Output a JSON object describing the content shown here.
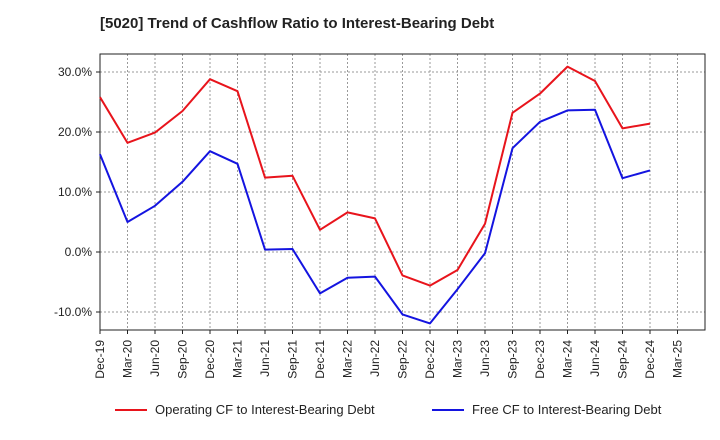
{
  "chart_data": {
    "type": "line",
    "title": "[5020]  Trend of Cashflow Ratio to Interest-Bearing Debt",
    "xlabel": "",
    "ylabel": "",
    "x_ticks": [
      "Dec-19",
      "Mar-20",
      "Jun-20",
      "Sep-20",
      "Dec-20",
      "Mar-21",
      "Jun-21",
      "Sep-21",
      "Dec-21",
      "Mar-22",
      "Jun-22",
      "Sep-22",
      "Dec-22",
      "Mar-23",
      "Jun-23",
      "Sep-23",
      "Dec-23",
      "Mar-24",
      "Jun-24",
      "Sep-24",
      "Dec-24",
      "Mar-25"
    ],
    "y_ticks": [
      "30.0%",
      "20.0%",
      "10.0%",
      "0.0%",
      "-10.0%"
    ],
    "y_tick_values": [
      30,
      20,
      10,
      0,
      -10
    ],
    "ylim": [
      -13,
      33
    ],
    "grid": true,
    "legend_position": "bottom",
    "x": [
      "Dec-19",
      "Mar-20",
      "Jun-20",
      "Sep-20",
      "Dec-20",
      "Mar-21",
      "Jun-21",
      "Sep-21",
      "Dec-21",
      "Mar-22",
      "Jun-22",
      "Sep-22",
      "Dec-22",
      "Mar-23",
      "Jun-23",
      "Sep-23",
      "Dec-23",
      "Mar-24",
      "Jun-24",
      "Sep-24",
      "Dec-24"
    ],
    "series": [
      {
        "name": "Operating CF to Interest-Bearing Debt",
        "color": "#e8141c",
        "values": [
          25.8,
          18.2,
          19.9,
          23.5,
          28.8,
          26.8,
          12.4,
          12.7,
          3.7,
          6.6,
          5.6,
          -3.9,
          -5.6,
          -3.0,
          4.7,
          23.2,
          26.4,
          30.9,
          28.5,
          20.6,
          21.4
        ]
      },
      {
        "name": "Free CF to Interest-Bearing Debt",
        "color": "#1414e0",
        "values": [
          16.3,
          5.0,
          7.7,
          11.7,
          16.8,
          14.7,
          0.4,
          0.5,
          -6.9,
          -4.3,
          -4.1,
          -10.4,
          -11.9,
          -6.2,
          -0.2,
          17.3,
          21.7,
          23.6,
          23.7,
          12.3,
          13.6
        ]
      }
    ]
  }
}
